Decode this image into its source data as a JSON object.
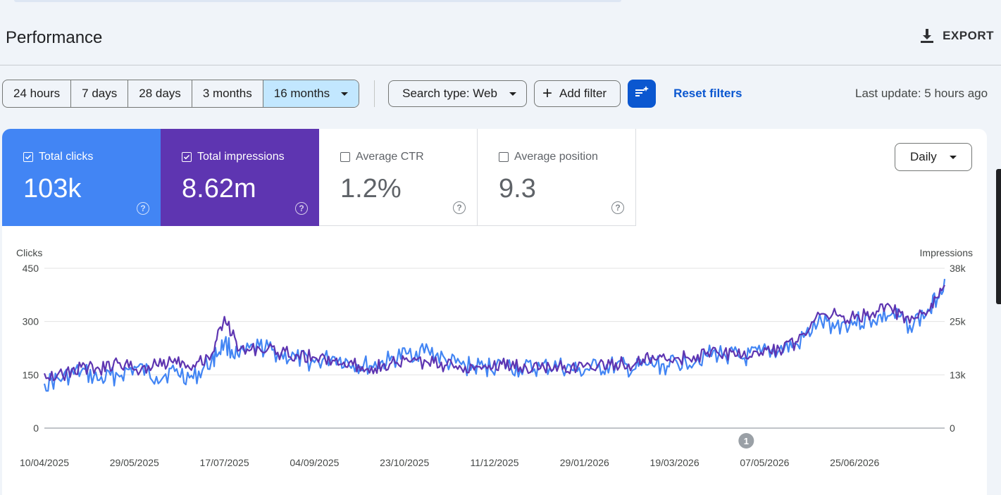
{
  "header": {
    "title": "Performance",
    "export_label": "EXPORT"
  },
  "filters": {
    "ranges": [
      {
        "label": "24 hours"
      },
      {
        "label": "7 days"
      },
      {
        "label": "28 days"
      },
      {
        "label": "3 months"
      },
      {
        "label": "16 months",
        "selected": true
      }
    ],
    "search_type": "Search type: Web",
    "add_filter": "Add filter",
    "reset": "Reset filters",
    "last_update": "Last update: 5 hours ago"
  },
  "metrics": {
    "clicks": {
      "label": "Total clicks",
      "value": "103k",
      "checked": true
    },
    "impressions": {
      "label": "Total impressions",
      "value": "8.62m",
      "checked": true
    },
    "ctr": {
      "label": "Average CTR",
      "value": "1.2%",
      "checked": false
    },
    "position": {
      "label": "Average position",
      "value": "9.3",
      "checked": false
    },
    "help_glyph": "?"
  },
  "granularity": "Daily",
  "colors": {
    "clicks": "#4285f4",
    "impressions": "#5e35b1",
    "accent": "#0b57d0",
    "selected_range": "#c2e7ff"
  },
  "chart_data": {
    "type": "line",
    "ylabel_left": "Clicks",
    "ylabel_right": "Impressions",
    "left_ticks": [
      "0",
      "150",
      "300",
      "450"
    ],
    "right_ticks": [
      "0",
      "13k",
      "25k",
      "38k"
    ],
    "ylim_left": [
      0,
      450
    ],
    "ylim_right": [
      0,
      38000
    ],
    "x_ticks": [
      "10/04/2025",
      "29/05/2025",
      "17/07/2025",
      "04/09/2025",
      "23/10/2025",
      "11/12/2025",
      "29/01/2026",
      "19/03/2026",
      "07/05/2026",
      "25/06/2026"
    ],
    "x_range": [
      "10/04/2025",
      "13/08/2026"
    ],
    "annotation": {
      "label": "1",
      "date": "27/04/2026"
    },
    "series": [
      {
        "axis": "left",
        "x": [
          "10/04/2025",
          "20/04/2025",
          "30/04/2025",
          "10/05/2025",
          "20/05/2025",
          "30/05/2025",
          "10/06/2025",
          "20/06/2025",
          "30/06/2025",
          "10/07/2025",
          "17/07/2025",
          "25/07/2025",
          "05/08/2025",
          "15/08/2025",
          "25/08/2025",
          "04/09/2025",
          "15/09/2025",
          "25/09/2025",
          "05/10/2025",
          "15/10/2025",
          "25/10/2025",
          "05/11/2025",
          "15/11/2025",
          "25/11/2025",
          "05/12/2025",
          "15/12/2025",
          "25/12/2025",
          "05/01/2026",
          "15/01/2026",
          "25/01/2026",
          "05/02/2026",
          "15/02/2026",
          "25/02/2026",
          "05/03/2026",
          "15/03/2026",
          "25/03/2026",
          "05/04/2026",
          "15/04/2026",
          "25/04/2026",
          "05/05/2026",
          "15/05/2026",
          "25/05/2026",
          "05/06/2026",
          "15/06/2026",
          "25/06/2026",
          "05/07/2026",
          "15/07/2026",
          "25/07/2026",
          "05/08/2026",
          "13/08/2026"
        ],
        "values": [
          125,
          140,
          160,
          135,
          150,
          170,
          145,
          160,
          140,
          190,
          240,
          200,
          230,
          210,
          195,
          185,
          200,
          180,
          175,
          190,
          210,
          220,
          185,
          175,
          170,
          180,
          165,
          170,
          175,
          160,
          170,
          175,
          165,
          180,
          175,
          190,
          205,
          210,
          195,
          210,
          220,
          235,
          295,
          290,
          300,
          305,
          320,
          290,
          330,
          420
        ]
      },
      {
        "axis": "right",
        "x": [
          "10/04/2025",
          "20/04/2025",
          "30/04/2025",
          "10/05/2025",
          "20/05/2025",
          "30/05/2025",
          "10/06/2025",
          "20/06/2025",
          "30/06/2025",
          "10/07/2025",
          "17/07/2025",
          "25/07/2025",
          "05/08/2025",
          "15/08/2025",
          "25/08/2025",
          "04/09/2025",
          "15/09/2025",
          "25/09/2025",
          "05/10/2025",
          "15/10/2025",
          "25/10/2025",
          "05/11/2025",
          "15/11/2025",
          "25/11/2025",
          "05/12/2025",
          "15/12/2025",
          "25/12/2025",
          "05/01/2026",
          "15/01/2026",
          "25/01/2026",
          "05/02/2026",
          "15/02/2026",
          "25/02/2026",
          "05/03/2026",
          "15/03/2026",
          "25/03/2026",
          "05/04/2026",
          "15/04/2026",
          "25/04/2026",
          "05/05/2026",
          "15/05/2026",
          "25/05/2026",
          "05/06/2026",
          "15/06/2026",
          "25/06/2026",
          "05/07/2026",
          "15/07/2026",
          "25/07/2026",
          "05/08/2026",
          "13/08/2026"
        ],
        "values": [
          13000,
          12500,
          14500,
          14000,
          15500,
          14000,
          15000,
          16500,
          15000,
          17500,
          26500,
          18500,
          19000,
          18000,
          17500,
          16800,
          16000,
          15000,
          14500,
          15200,
          16000,
          15500,
          15000,
          14600,
          14800,
          15200,
          14500,
          14200,
          14800,
          14300,
          14700,
          15500,
          15000,
          16500,
          16000,
          16800,
          17500,
          18000,
          17200,
          18000,
          18800,
          20500,
          27500,
          27000,
          26000,
          27500,
          28500,
          25000,
          28000,
          34000
        ]
      }
    ]
  }
}
